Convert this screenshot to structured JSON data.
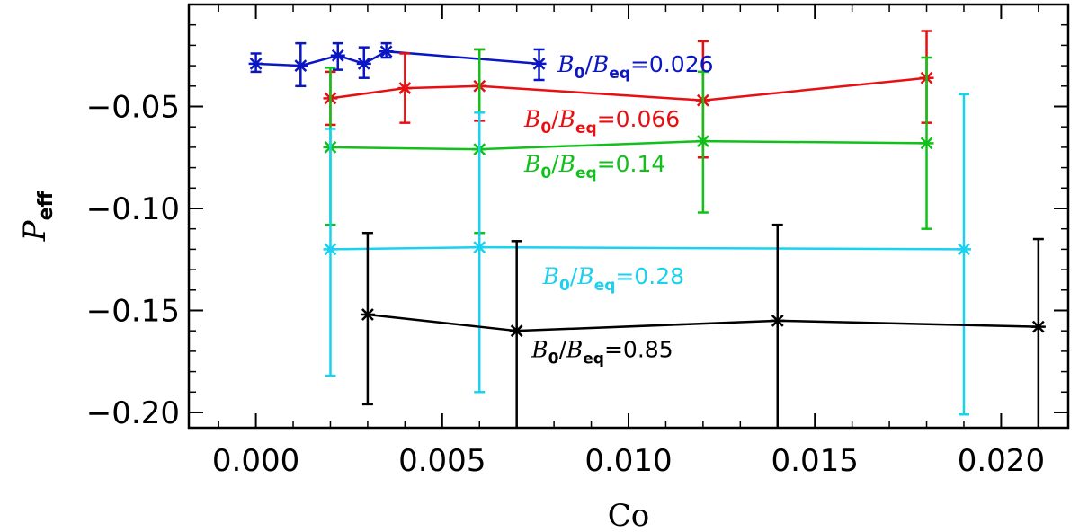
{
  "chart_data": {
    "type": "line",
    "xlabel": "Co",
    "ylabel": "P",
    "ylabel_subscript": "eff",
    "xlim": [
      -0.0018,
      0.0218
    ],
    "ylim": [
      -0.2075,
      -0.0
    ],
    "x_ticks": [
      0.0,
      0.005,
      0.01,
      0.015,
      0.02
    ],
    "x_tick_labels": [
      "0.000",
      "0.005",
      "0.010",
      "0.015",
      "0.020"
    ],
    "y_ticks": [
      -0.05,
      -0.1,
      -0.15,
      -0.2
    ],
    "y_tick_labels": [
      "−0.05",
      "−0.10",
      "−0.15",
      "−0.20"
    ],
    "series": [
      {
        "name": "B0/Beq=0.026",
        "label_parts": [
          "B",
          "0",
          "/",
          "B",
          "eq",
          "=0.026"
        ],
        "color": "#0a16c4",
        "x": [
          0.0,
          0.0012,
          0.0022,
          0.0029,
          0.0035,
          0.0076
        ],
        "y": [
          -0.029,
          -0.03,
          -0.025,
          -0.029,
          -0.023,
          -0.029
        ],
        "err_lo": [
          -0.033,
          -0.04,
          -0.032,
          -0.036,
          -0.026,
          -0.037
        ],
        "err_hi": [
          -0.024,
          -0.019,
          -0.019,
          -0.021,
          -0.019,
          -0.022
        ],
        "label_at": [
          0.0081,
          -0.029
        ]
      },
      {
        "name": "B0/Beq=0.066",
        "label_parts": [
          "B",
          "0",
          "/",
          "B",
          "eq",
          "=0.066"
        ],
        "color": "#e80f12",
        "x": [
          0.002,
          0.004,
          0.006,
          0.012,
          0.018
        ],
        "y": [
          -0.046,
          -0.041,
          -0.04,
          -0.047,
          -0.036
        ],
        "err_lo": [
          -0.059,
          -0.058,
          -0.057,
          -0.075,
          -0.058
        ],
        "err_hi": [
          -0.033,
          -0.024,
          -0.022,
          -0.018,
          -0.013
        ],
        "label_at": [
          0.0072,
          -0.056
        ]
      },
      {
        "name": "B0/Beq=0.14",
        "label_parts": [
          "B",
          "0",
          "/",
          "B",
          "eq",
          "=0.14"
        ],
        "color": "#11c01b",
        "x": [
          0.002,
          0.006,
          0.012,
          0.018
        ],
        "y": [
          -0.07,
          -0.071,
          -0.067,
          -0.068
        ],
        "err_lo": [
          -0.108,
          -0.112,
          -0.102,
          -0.11
        ],
        "err_hi": [
          -0.031,
          -0.022,
          -0.033,
          -0.026
        ],
        "label_at": [
          0.0072,
          -0.078
        ]
      },
      {
        "name": "B0/Beq=0.28",
        "label_parts": [
          "B",
          "0",
          "/",
          "B",
          "eq",
          "=0.28"
        ],
        "color": "#1ad1f0",
        "x": [
          0.002,
          0.006,
          0.019
        ],
        "y": [
          -0.12,
          -0.119,
          -0.12
        ],
        "err_lo": [
          -0.182,
          -0.19,
          -0.201
        ],
        "err_hi": [
          -0.061,
          -0.053,
          -0.044
        ],
        "label_at": [
          0.0077,
          -0.133
        ]
      },
      {
        "name": "B0/Beq=0.85",
        "label_parts": [
          "B",
          "0",
          "/",
          "B",
          "eq",
          "=0.85"
        ],
        "color": "#000000",
        "x": [
          0.003,
          0.007,
          0.014,
          0.021
        ],
        "y": [
          -0.152,
          -0.16,
          -0.155,
          -0.158
        ],
        "err_lo": [
          -0.196,
          -0.21,
          -0.21,
          -0.21
        ],
        "err_hi": [
          -0.112,
          -0.116,
          -0.108,
          -0.115
        ],
        "label_at": [
          0.0074,
          -0.169
        ]
      }
    ]
  }
}
